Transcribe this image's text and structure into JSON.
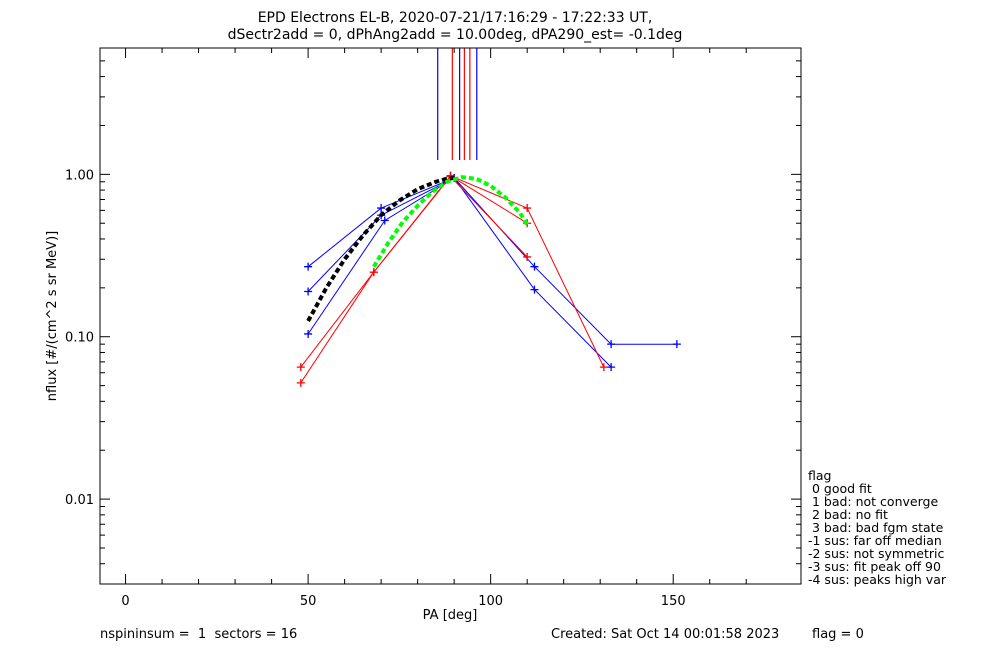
{
  "title_line1": "EPD Electrons EL-B, 2020-07-21/17:16:29 - 17:22:33 UT,",
  "title_line2": "dSectr2add = 0, dPhAng2add = 10.00deg, dPA290_est=  -0.1deg",
  "footer": {
    "left": "nspininsum =  1  sectors = 16",
    "created": "Created: Sat Oct 14 00:01:58 2023",
    "flag": "flag = 0"
  },
  "legend": {
    "title": "flag",
    "items": [
      " 0 good fit",
      " 1 bad: not converge",
      " 2 bad: no fit",
      " 3 bad: bad fgm state",
      "-1 sus: far off median",
      "-2 sus: not symmetric",
      "-3 sus: fit peak off 90",
      "-4 sus: peaks high var"
    ]
  },
  "colors": {
    "blue": "#0000ff",
    "red": "#ff0000",
    "green": "#00ff00",
    "black": "#000000"
  },
  "chart_data": {
    "type": "line",
    "xlabel": "PA [deg]",
    "ylabel": "nflux [#/(cm^2 s sr MeV)]",
    "xlim": [
      -7,
      185
    ],
    "ylim": [
      0.003,
      6.0
    ],
    "yscale": "log",
    "xticks": [
      0,
      50,
      100,
      150
    ],
    "xtick_labels": [
      "0",
      "50",
      "100",
      "150"
    ],
    "yticks": [
      0.01,
      0.1,
      1.0
    ],
    "ytick_labels": [
      "0.01",
      "0.10",
      "1.00"
    ],
    "series": [
      {
        "color": "blue",
        "x": [
          50,
          70,
          90,
          112,
          133,
          151
        ],
        "y": [
          0.27,
          0.62,
          0.95,
          0.27,
          0.09,
          0.09
        ]
      },
      {
        "color": "blue",
        "x": [
          50,
          70,
          90,
          112,
          133
        ],
        "y": [
          0.19,
          0.56,
          0.95,
          0.195,
          0.065
        ]
      },
      {
        "color": "blue",
        "x": [
          50,
          71,
          90
        ],
        "y": [
          0.104,
          0.52,
          0.95
        ]
      },
      {
        "color": "red",
        "x": [
          48,
          68,
          89,
          110
        ],
        "y": [
          0.065,
          0.25,
          0.97,
          0.31
        ]
      },
      {
        "color": "red",
        "x": [
          48,
          68,
          89,
          110,
          131
        ],
        "y": [
          0.052,
          0.25,
          0.98,
          0.62,
          0.065
        ]
      },
      {
        "color": "red",
        "x": [
          89,
          110
        ],
        "y": [
          0.98,
          0.5
        ]
      }
    ],
    "fit_curves": [
      {
        "color": "black",
        "dashed": true,
        "x": [
          50,
          55,
          60,
          65,
          70,
          75,
          80,
          85,
          88,
          90
        ],
        "y": [
          0.125,
          0.2,
          0.3,
          0.42,
          0.56,
          0.69,
          0.81,
          0.9,
          0.94,
          0.95
        ]
      },
      {
        "color": "green",
        "dashed": true,
        "x": [
          68,
          72,
          76,
          80,
          84,
          88,
          92,
          96,
          100,
          104,
          108,
          110
        ],
        "y": [
          0.27,
          0.38,
          0.51,
          0.64,
          0.78,
          0.9,
          0.96,
          0.94,
          0.85,
          0.72,
          0.58,
          0.49
        ]
      }
    ],
    "vertical_lines": [
      {
        "x": 85.5,
        "color": "blue"
      },
      {
        "x": 89.5,
        "color": "red"
      },
      {
        "x": 91.5,
        "color": "blue"
      },
      {
        "x": 92.8,
        "color": "red"
      },
      {
        "x": 94.3,
        "color": "red"
      },
      {
        "x": 96.2,
        "color": "blue"
      }
    ]
  }
}
